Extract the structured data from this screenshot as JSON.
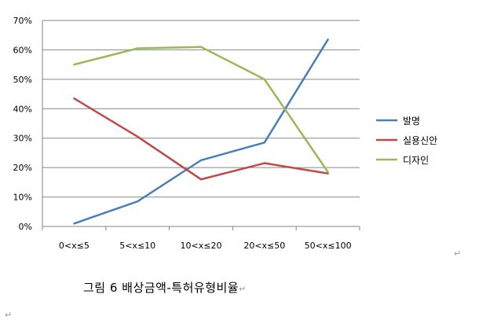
{
  "chart_data": {
    "type": "line",
    "categories": [
      "0<x≤5",
      "5<x≤10",
      "10<x≤20",
      "20<x≤50",
      "50<x≤100"
    ],
    "series": [
      {
        "name": "발명",
        "color": "#4a7ebb",
        "values": [
          1,
          8.5,
          22.5,
          28.5,
          63.5
        ]
      },
      {
        "name": "실용신안",
        "color": "#be4b48",
        "values": [
          43.5,
          30.5,
          16,
          21.5,
          18
        ]
      },
      {
        "name": "디자인",
        "color": "#98b954",
        "values": [
          55,
          60.5,
          61,
          50,
          18.5
        ]
      }
    ],
    "ylim": [
      0,
      70
    ],
    "yticks": [
      "0%",
      "10%",
      "20%",
      "30%",
      "40%",
      "50%",
      "60%",
      "70%"
    ],
    "grid": true,
    "legend_position": "right"
  },
  "caption": "그림 6  배상금액-특허유형비율",
  "marks": {
    "return": "↵"
  }
}
